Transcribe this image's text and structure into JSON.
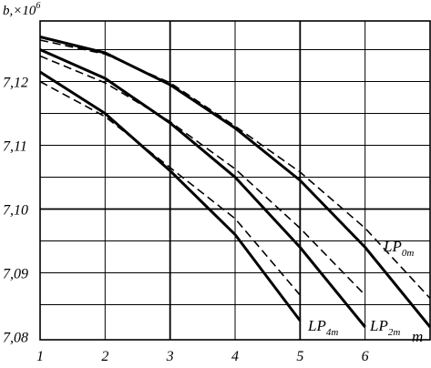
{
  "chart_data": {
    "type": "line",
    "ylabel": "b,×10",
    "ylabel_exp": "6",
    "xlabel": "m",
    "x_ticks": [
      "1",
      "2",
      "3",
      "4",
      "5",
      "6"
    ],
    "y_ticks": [
      "7,08",
      "7,09",
      "7,10",
      "7,11",
      "7,12"
    ],
    "xlim": [
      1,
      7
    ],
    "ylim": [
      7.0795,
      7.1295
    ],
    "grid": true,
    "series": [
      {
        "name": "LP0m",
        "label_main": "LP",
        "label_sub": "0m",
        "style": "solid",
        "x": [
          1,
          2,
          3,
          4,
          5,
          6,
          7
        ],
        "y": [
          7.127,
          7.1245,
          7.1195,
          7.1127,
          7.1045,
          7.094,
          7.0815
        ]
      },
      {
        "style": "dashed",
        "x": [
          1,
          2,
          3,
          4,
          5,
          6,
          7
        ],
        "y": [
          7.1265,
          7.1243,
          7.1198,
          7.113,
          7.1058,
          7.097,
          7.086
        ]
      },
      {
        "name": "LP2m",
        "label_main": "LP",
        "label_sub": "2m",
        "style": "solid",
        "x": [
          1,
          2,
          3,
          4,
          5,
          6
        ],
        "y": [
          7.125,
          7.1205,
          7.1135,
          7.105,
          7.094,
          7.0815
        ]
      },
      {
        "style": "dashed",
        "x": [
          1,
          2,
          3,
          4,
          5,
          6
        ],
        "y": [
          7.124,
          7.1198,
          7.1137,
          7.1063,
          7.097,
          7.0865
        ]
      },
      {
        "name": "LP4m",
        "label_main": "LP",
        "label_sub": "4m",
        "style": "solid",
        "x": [
          1,
          2,
          3,
          4,
          5
        ],
        "y": [
          7.1215,
          7.115,
          7.106,
          7.096,
          7.0825
        ]
      },
      {
        "style": "dashed",
        "x": [
          1,
          2,
          3,
          4,
          5
        ],
        "y": [
          7.12,
          7.1145,
          7.1065,
          7.0985,
          7.0865
        ]
      }
    ]
  }
}
